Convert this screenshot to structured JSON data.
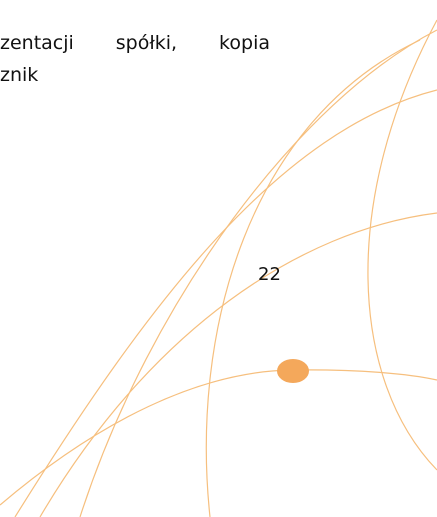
{
  "text": {
    "lines": [
      "zentacji spółki, kopia",
      "znik"
    ]
  },
  "page_number": "22"
}
